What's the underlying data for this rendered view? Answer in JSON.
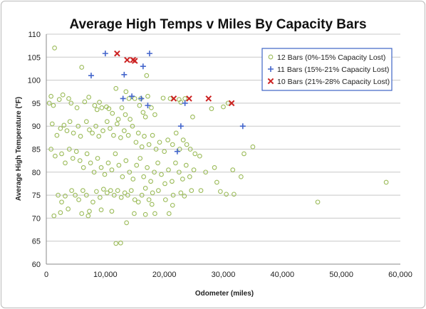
{
  "chart_data": {
    "type": "scatter",
    "title": "Average High Temps v Miles By Capacity Bars",
    "xlabel": "Odometer (miles)",
    "ylabel": "Average High Temperature (°F)",
    "xlim": [
      0,
      60000
    ],
    "ylim": [
      60,
      110
    ],
    "xticks": [
      0,
      10000,
      20000,
      30000,
      40000,
      50000,
      60000
    ],
    "xtick_labels": [
      "0",
      "10,000",
      "20,000",
      "30,000",
      "40,000",
      "50,000",
      "60,000"
    ],
    "yticks": [
      60,
      65,
      70,
      75,
      80,
      85,
      90,
      95,
      100,
      105,
      110
    ],
    "ytick_labels": [
      "60",
      "65",
      "70",
      "75",
      "80",
      "85",
      "90",
      "95",
      "100",
      "105",
      "110"
    ],
    "grid": "horizontal",
    "legend_position": "top-right",
    "series": [
      {
        "name": "12 Bars (0%-15% Capacity Lost)",
        "marker": "circle",
        "color": "#9bbb59",
        "points": [
          [
            1400,
            107
          ],
          [
            6000,
            102.8
          ],
          [
            9000,
            95.2
          ],
          [
            11800,
            98.2
          ],
          [
            13500,
            97.5
          ],
          [
            14000,
            96
          ],
          [
            15000,
            96
          ],
          [
            16000,
            96
          ],
          [
            17200,
            96.5
          ],
          [
            17000,
            101
          ],
          [
            19800,
            96.1
          ],
          [
            21000,
            96
          ],
          [
            22500,
            95.8
          ],
          [
            22800,
            95.2
          ],
          [
            23500,
            96
          ],
          [
            24800,
            92
          ],
          [
            500,
            95
          ],
          [
            800,
            96.5
          ],
          [
            1200,
            94.5
          ],
          [
            2200,
            95.8
          ],
          [
            2800,
            96.8
          ],
          [
            3800,
            96
          ],
          [
            4200,
            95
          ],
          [
            5200,
            94
          ],
          [
            6500,
            95.3
          ],
          [
            7200,
            96.3
          ],
          [
            8200,
            94.5
          ],
          [
            8600,
            93.6
          ],
          [
            9400,
            94
          ],
          [
            10200,
            94.2
          ],
          [
            10600,
            93.8
          ],
          [
            11200,
            92.8
          ],
          [
            12200,
            91.5
          ],
          [
            12800,
            94
          ],
          [
            13400,
            92.5
          ],
          [
            14200,
            91.5
          ],
          [
            15800,
            94.5
          ],
          [
            16400,
            93
          ],
          [
            16800,
            92
          ],
          [
            17800,
            94
          ],
          [
            18400,
            92.5
          ],
          [
            1000,
            90.5
          ],
          [
            1800,
            88
          ],
          [
            2400,
            89.5
          ],
          [
            3000,
            90.2
          ],
          [
            3500,
            89
          ],
          [
            4000,
            91
          ],
          [
            4600,
            88.5
          ],
          [
            5400,
            90
          ],
          [
            5800,
            87.8
          ],
          [
            6800,
            91
          ],
          [
            7300,
            89.2
          ],
          [
            7800,
            88.5
          ],
          [
            8400,
            90
          ],
          [
            8900,
            87.8
          ],
          [
            9600,
            89
          ],
          [
            10300,
            91
          ],
          [
            10800,
            89.5
          ],
          [
            11400,
            88
          ],
          [
            12000,
            90.5
          ],
          [
            12600,
            87.5
          ],
          [
            13200,
            89
          ],
          [
            13900,
            88
          ],
          [
            14600,
            90
          ],
          [
            15200,
            86.5
          ],
          [
            15600,
            88.5
          ],
          [
            16200,
            85.5
          ],
          [
            16600,
            87.8
          ],
          [
            17400,
            86
          ],
          [
            18000,
            88
          ],
          [
            18600,
            85
          ],
          [
            19200,
            86.5
          ],
          [
            20000,
            84.5
          ],
          [
            20600,
            87
          ],
          [
            21400,
            86
          ],
          [
            22000,
            88.5
          ],
          [
            22600,
            85
          ],
          [
            23200,
            87
          ],
          [
            23800,
            86
          ],
          [
            24400,
            85
          ],
          [
            25200,
            84
          ],
          [
            26000,
            83.5
          ],
          [
            28000,
            93.8
          ],
          [
            30000,
            94.2
          ],
          [
            30800,
            95
          ],
          [
            33500,
            84
          ],
          [
            35000,
            85.5
          ],
          [
            800,
            85
          ],
          [
            1500,
            83.5
          ],
          [
            2600,
            84
          ],
          [
            3200,
            82
          ],
          [
            3900,
            85
          ],
          [
            4500,
            83
          ],
          [
            5100,
            84.5
          ],
          [
            5700,
            82.5
          ],
          [
            6300,
            81
          ],
          [
            6900,
            84
          ],
          [
            7500,
            82
          ],
          [
            8100,
            80
          ],
          [
            8700,
            83
          ],
          [
            9300,
            81
          ],
          [
            9900,
            79.5
          ],
          [
            10500,
            82
          ],
          [
            11100,
            80.5
          ],
          [
            11700,
            84
          ],
          [
            12300,
            81.5
          ],
          [
            12900,
            79
          ],
          [
            13500,
            82.5
          ],
          [
            14100,
            80
          ],
          [
            14700,
            78.5
          ],
          [
            15300,
            81.5
          ],
          [
            15900,
            83
          ],
          [
            16500,
            79
          ],
          [
            17100,
            81
          ],
          [
            17700,
            78
          ],
          [
            18300,
            80
          ],
          [
            18900,
            82
          ],
          [
            19500,
            79.5
          ],
          [
            20100,
            77.5
          ],
          [
            20700,
            80.5
          ],
          [
            21300,
            78
          ],
          [
            21900,
            82
          ],
          [
            22500,
            80
          ],
          [
            23100,
            78.5
          ],
          [
            23700,
            81.5
          ],
          [
            24300,
            79
          ],
          [
            25000,
            80.5
          ],
          [
            27000,
            80
          ],
          [
            28500,
            81
          ],
          [
            28900,
            77.8
          ],
          [
            30500,
            75.2
          ],
          [
            31600,
            80.5
          ],
          [
            33000,
            79
          ],
          [
            2000,
            75
          ],
          [
            2600,
            73.5
          ],
          [
            3200,
            74.8
          ],
          [
            3700,
            72
          ],
          [
            4300,
            76
          ],
          [
            4900,
            75
          ],
          [
            5500,
            74
          ],
          [
            6200,
            76
          ],
          [
            6800,
            75
          ],
          [
            7300,
            71.5
          ],
          [
            7900,
            73.5
          ],
          [
            8500,
            75.8
          ],
          [
            9100,
            74.5
          ],
          [
            9700,
            76.3
          ],
          [
            10300,
            75.5
          ],
          [
            10900,
            76
          ],
          [
            11500,
            75
          ],
          [
            12100,
            76
          ],
          [
            12700,
            74.5
          ],
          [
            13300,
            75.5
          ],
          [
            13800,
            75
          ],
          [
            14400,
            76
          ],
          [
            15000,
            74
          ],
          [
            15600,
            73.5
          ],
          [
            16200,
            75
          ],
          [
            16800,
            76.5
          ],
          [
            17400,
            74
          ],
          [
            18000,
            75.5
          ],
          [
            19000,
            76
          ],
          [
            20200,
            74
          ],
          [
            21500,
            75
          ],
          [
            22800,
            75.5
          ],
          [
            23400,
            74.8
          ],
          [
            24600,
            76
          ],
          [
            26200,
            76
          ],
          [
            29500,
            75.8
          ],
          [
            31800,
            75.2
          ],
          [
            1300,
            70.5
          ],
          [
            2400,
            71.2
          ],
          [
            6000,
            71
          ],
          [
            7100,
            70.5
          ],
          [
            9300,
            71.8
          ],
          [
            11100,
            71.5
          ],
          [
            14900,
            71
          ],
          [
            16800,
            70.8
          ],
          [
            17900,
            73
          ],
          [
            18400,
            71
          ],
          [
            20800,
            71
          ],
          [
            21400,
            72.8
          ],
          [
            13600,
            69
          ],
          [
            11800,
            64.5
          ],
          [
            12600,
            64.6
          ],
          [
            46000,
            73.5
          ],
          [
            57600,
            77.8
          ]
        ]
      },
      {
        "name": "11 Bars (15%-21% Capacity Lost)",
        "marker": "plus",
        "color": "#4466cc",
        "points": [
          [
            10000,
            105.8
          ],
          [
            17500,
            105.8
          ],
          [
            16400,
            103
          ],
          [
            13200,
            101.2
          ],
          [
            7600,
            101
          ],
          [
            14500,
            96.5
          ],
          [
            13000,
            96
          ],
          [
            16100,
            96
          ],
          [
            17200,
            94.5
          ],
          [
            23500,
            95
          ],
          [
            22800,
            90
          ],
          [
            22200,
            84.5
          ],
          [
            33300,
            90
          ]
        ]
      },
      {
        "name": "10 Bars (21%-28% Capacity Lost)",
        "marker": "x",
        "color": "#cc2222",
        "points": [
          [
            12000,
            105.8
          ],
          [
            13700,
            104.4
          ],
          [
            14700,
            104.4
          ],
          [
            15000,
            104.2
          ],
          [
            21600,
            96
          ],
          [
            24200,
            96
          ],
          [
            27500,
            96
          ],
          [
            31400,
            95
          ]
        ]
      }
    ]
  }
}
